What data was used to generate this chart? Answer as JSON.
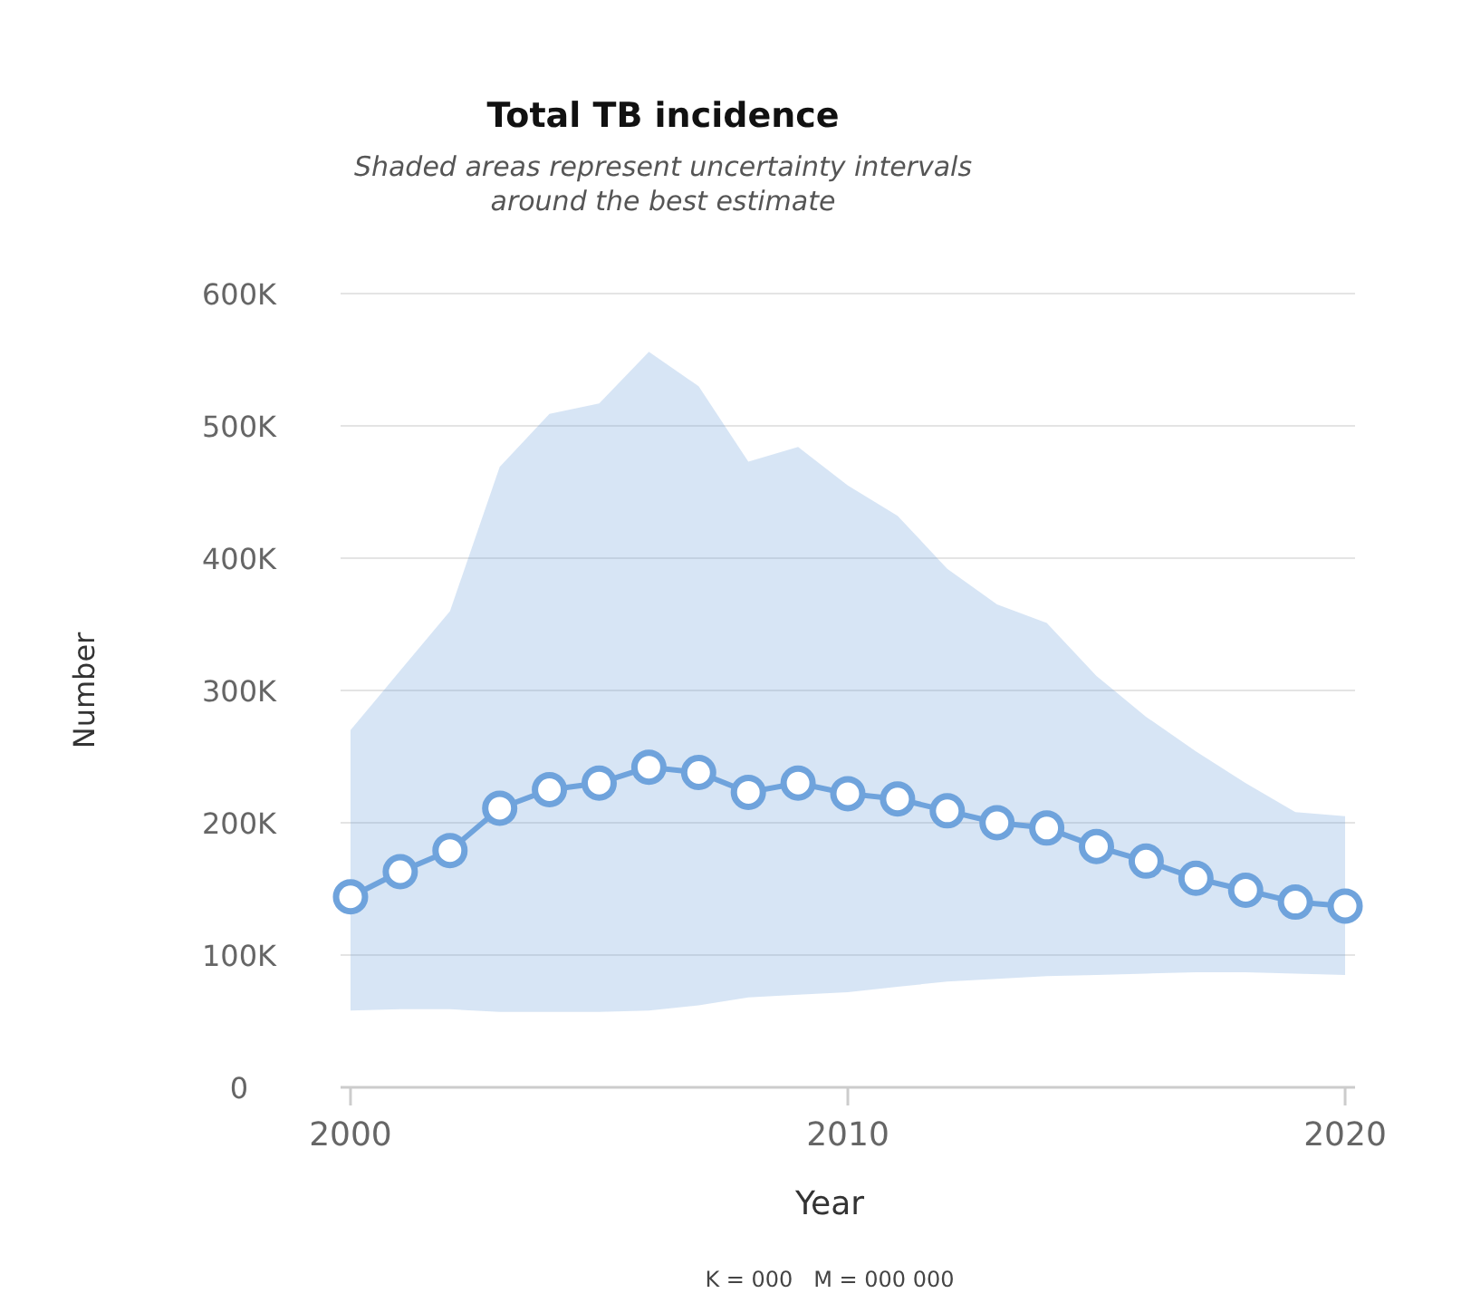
{
  "chart_data": {
    "type": "line",
    "title": "Total TB incidence",
    "subtitle": "Shaded areas represent uncertainty intervals\naround the best estimate",
    "xlabel": "Year",
    "ylabel": "Number",
    "x": [
      2000,
      2001,
      2002,
      2003,
      2004,
      2005,
      2006,
      2007,
      2008,
      2009,
      2010,
      2011,
      2012,
      2013,
      2014,
      2015,
      2016,
      2017,
      2018,
      2019,
      2020
    ],
    "series": [
      {
        "color": "#6fa3dc",
        "values": [
          144000,
          163000,
          179000,
          211000,
          225000,
          230000,
          242000,
          238000,
          223000,
          230000,
          222000,
          218000,
          209000,
          200000,
          196000,
          182000,
          171000,
          158000,
          149000,
          140000,
          137000
        ],
        "lower": [
          58000,
          59000,
          59000,
          57000,
          57000,
          57000,
          58000,
          62000,
          68000,
          70000,
          72000,
          76000,
          80000,
          82000,
          84000,
          85000,
          86000,
          87000,
          87000,
          86000,
          85000
        ],
        "upper": [
          270000,
          315000,
          360000,
          469000,
          509000,
          517000,
          556000,
          530000,
          473000,
          484000,
          455000,
          432000,
          392000,
          365000,
          351000,
          311000,
          280000,
          254000,
          230000,
          208000,
          205000
        ]
      }
    ],
    "xlim": [
      1999.8,
      2020.2
    ],
    "xticks": [
      2000,
      2010,
      2020
    ],
    "ylim": [
      0,
      600000
    ],
    "yticks": [
      {
        "value": 0,
        "label": "0"
      },
      {
        "value": 100000,
        "label": "100K"
      },
      {
        "value": 200000,
        "label": "200K"
      },
      {
        "value": 300000,
        "label": "300K"
      },
      {
        "value": 400000,
        "label": "400K"
      },
      {
        "value": 500000,
        "label": "500K"
      },
      {
        "value": 600000,
        "label": "600K"
      }
    ],
    "grid": "y",
    "marker": "circle",
    "line_style": "solid",
    "annotations": [
      "K = 000   M = 000 000"
    ]
  }
}
